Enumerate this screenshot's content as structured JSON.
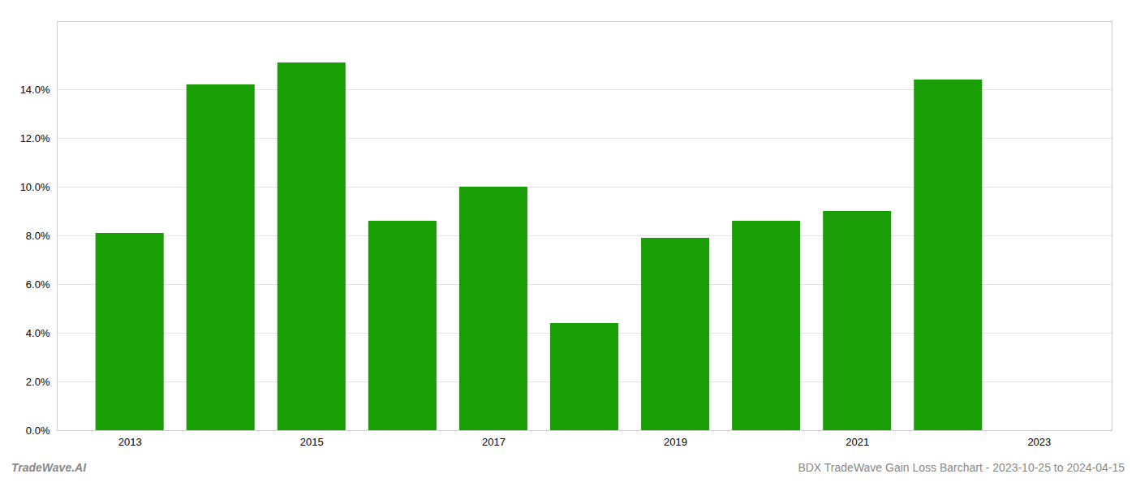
{
  "chart_data": {
    "type": "bar",
    "title": "BDX TradeWave Gain Loss Barchart - 2023-10-25 to 2024-04-15",
    "annotations": [
      "TradeWave.AI"
    ],
    "x": [
      2013,
      2014,
      2015,
      2016,
      2017,
      2018,
      2019,
      2020,
      2021,
      2022
    ],
    "values": [
      0.081,
      0.142,
      0.151,
      0.086,
      0.1,
      0.044,
      0.079,
      0.086,
      0.09,
      0.144
    ],
    "color": "#1a9e06",
    "xlim": [
      2012.2,
      2023.8
    ],
    "xticks": [
      2013,
      2015,
      2017,
      2019,
      2021,
      2023
    ],
    "ylim": [
      0,
      0.168
    ],
    "yticks": [
      {
        "value": 0.0,
        "label": "0.0%"
      },
      {
        "value": 0.02,
        "label": "2.0%"
      },
      {
        "value": 0.04,
        "label": "4.0%"
      },
      {
        "value": 0.06,
        "label": "6.0%"
      },
      {
        "value": 0.08,
        "label": "8.0%"
      },
      {
        "value": 0.1,
        "label": "10.0%"
      },
      {
        "value": 0.12,
        "label": "12.0%"
      },
      {
        "value": 0.14,
        "label": "14.0%"
      }
    ],
    "grid": true
  }
}
